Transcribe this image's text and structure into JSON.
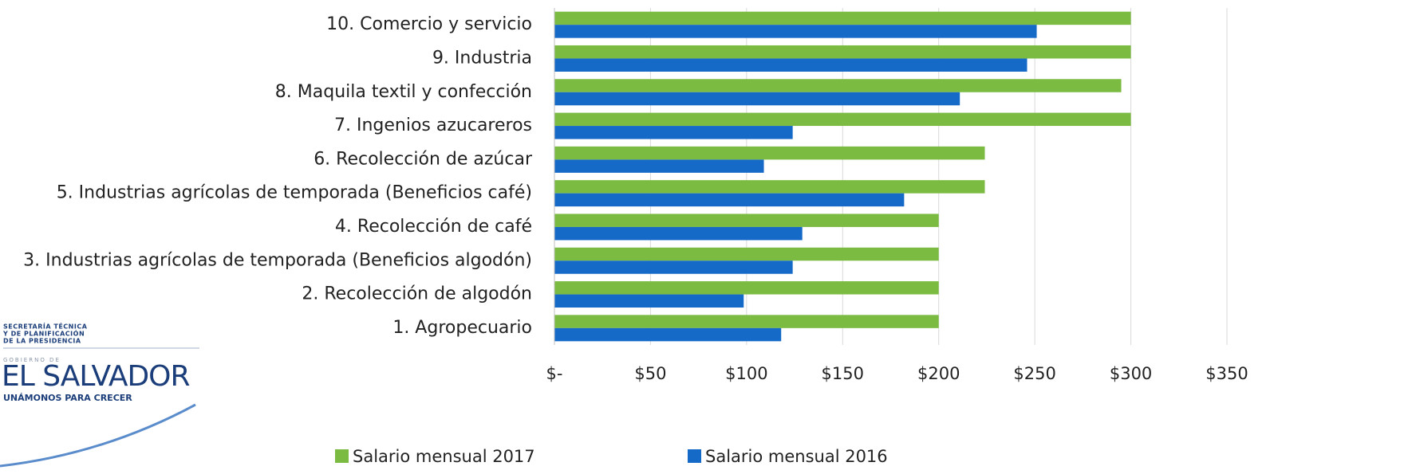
{
  "chart_data": {
    "type": "barh",
    "categories": [
      "1. Agropecuario",
      "2. Recolección de algodón",
      "3. Industrias agrícolas de temporada (Beneficios algodón)",
      "4. Recolección de café",
      "5. Industrias agrícolas de temporada (Beneficios café)",
      "6. Recolección de azúcar",
      "7. Ingenios azucareros",
      "8. Maquila textil y confección",
      "9. Industria",
      "10. Comercio y servicio"
    ],
    "series": [
      {
        "name": "Salario mensual 2017",
        "color": "#7cbb42",
        "values": [
          200,
          200,
          200,
          200,
          224,
          224,
          300,
          295,
          300,
          300
        ]
      },
      {
        "name": "Salario mensual 2016",
        "color": "#1569c7",
        "values": [
          118,
          98.5,
          124,
          129,
          182,
          109,
          124,
          211,
          246,
          251
        ]
      }
    ],
    "xlim": [
      0,
      350
    ],
    "xticks": [
      {
        "value": 0,
        "label": "$-"
      },
      {
        "value": 50,
        "label": "$50"
      },
      {
        "value": 100,
        "label": "$100"
      },
      {
        "value": 150,
        "label": "$150"
      },
      {
        "value": 200,
        "label": "$200"
      },
      {
        "value": 250,
        "label": "$250"
      },
      {
        "value": 300,
        "label": "$300"
      },
      {
        "value": 350,
        "label": "$350"
      }
    ],
    "grid": true,
    "legend": "bottom"
  },
  "logo": {
    "agency": [
      "SECRETARÍA TÉCNICA",
      "Y DE PLANIFICACIÓN",
      "DE LA PRESIDENCIA"
    ],
    "government": "GOBIERNO DE",
    "country": "EL SALVADOR",
    "slogan": "UNÁMONOS PARA CRECER"
  }
}
